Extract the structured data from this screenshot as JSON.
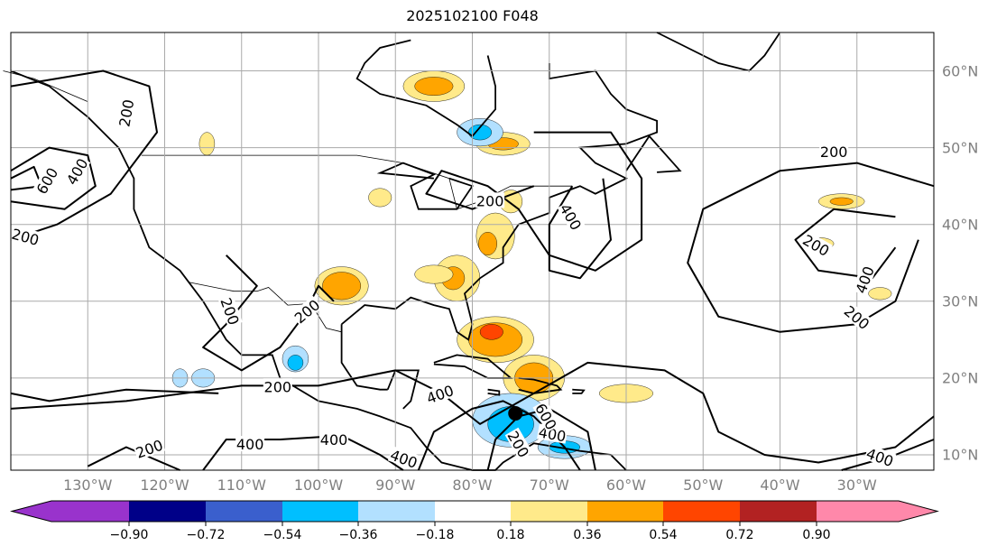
{
  "title": "2025102100 F048",
  "extent": {
    "lon_min": -140,
    "lon_max": -20,
    "lat_min": 8,
    "lat_max": 65
  },
  "lon_ticks": [
    {
      "value": -130,
      "label": "130°W"
    },
    {
      "value": -120,
      "label": "120°W"
    },
    {
      "value": -110,
      "label": "110°W"
    },
    {
      "value": -100,
      "label": "100°W"
    },
    {
      "value": -90,
      "label": "90°W"
    },
    {
      "value": -80,
      "label": "80°W"
    },
    {
      "value": -70,
      "label": "70°W"
    },
    {
      "value": -60,
      "label": "60°W"
    },
    {
      "value": -50,
      "label": "50°W"
    },
    {
      "value": -40,
      "label": "40°W"
    },
    {
      "value": -30,
      "label": "30°W"
    }
  ],
  "lat_ticks": [
    {
      "value": 60,
      "label": "60°N"
    },
    {
      "value": 50,
      "label": "50°N"
    },
    {
      "value": 40,
      "label": "40°N"
    },
    {
      "value": 30,
      "label": "30°N"
    },
    {
      "value": 20,
      "label": "20°N"
    },
    {
      "value": 10,
      "label": "10°N"
    }
  ],
  "colorbar": {
    "colors": [
      "#9933cc",
      "#000088",
      "#3a5fcd",
      "#00bfff",
      "#b2e0ff",
      "#ffffff",
      "#ffea8a",
      "#ffa500",
      "#ff4500",
      "#b22222",
      "#ff88aa"
    ],
    "tick_labels": [
      "−0.90",
      "−0.72",
      "−0.54",
      "−0.36",
      "−0.18",
      "0.18",
      "0.36",
      "0.54",
      "0.72",
      "0.90"
    ]
  },
  "contour_labels": [
    {
      "text": "200",
      "lon": -125,
      "lat": 54.5,
      "rot": 80
    },
    {
      "text": "600",
      "lon": -135.3,
      "lat": 45.7,
      "rot": 60
    },
    {
      "text": "400",
      "lon": -131.4,
      "lat": 46.9,
      "rot": 60
    },
    {
      "text": "200",
      "lon": -138.1,
      "lat": 38.4,
      "rot": -15
    },
    {
      "text": "200",
      "lon": -33,
      "lat": 49.5,
      "rot": 0
    },
    {
      "text": "400",
      "lon": -67.2,
      "lat": 41,
      "rot": -60
    },
    {
      "text": "200",
      "lon": -77.7,
      "lat": 43.1,
      "rot": 0
    },
    {
      "text": "200",
      "lon": -35.3,
      "lat": 37.3,
      "rot": -30
    },
    {
      "text": "400",
      "lon": -29,
      "lat": 32.8,
      "rot": 70
    },
    {
      "text": "200",
      "lon": -30,
      "lat": 27.9,
      "rot": -40
    },
    {
      "text": "200",
      "lon": -111.5,
      "lat": 28.7,
      "rot": -70
    },
    {
      "text": "200",
      "lon": -101.5,
      "lat": 28.7,
      "rot": 40
    },
    {
      "text": "200",
      "lon": -105.3,
      "lat": 18.9,
      "rot": 0
    },
    {
      "text": "400",
      "lon": -84.2,
      "lat": 17.9,
      "rot": 20
    },
    {
      "text": "400",
      "lon": -108.9,
      "lat": 11.4,
      "rot": 0
    },
    {
      "text": "400",
      "lon": -98,
      "lat": 12,
      "rot": 0
    },
    {
      "text": "200",
      "lon": -122,
      "lat": 10.8,
      "rot": 20
    },
    {
      "text": "400",
      "lon": -88.9,
      "lat": 9.5,
      "rot": -20
    },
    {
      "text": "400",
      "lon": -69.6,
      "lat": 12.7,
      "rot": -10
    },
    {
      "text": "600",
      "lon": -70.4,
      "lat": 15,
      "rot": -60
    },
    {
      "text": "200",
      "lon": -74,
      "lat": 11.4,
      "rot": -60
    },
    {
      "text": "400",
      "lon": -27,
      "lat": 9.7,
      "rot": -20
    }
  ],
  "storm_center": {
    "lon": -74.4,
    "lat": 15.4
  }
}
